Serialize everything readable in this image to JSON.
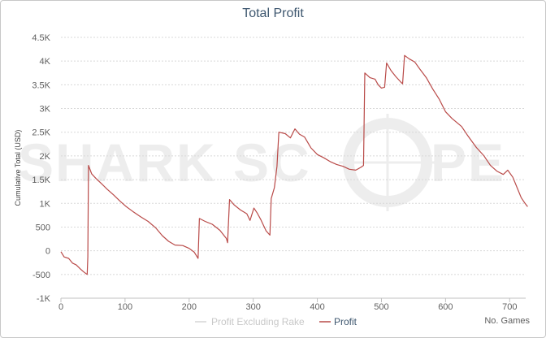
{
  "colors": {
    "profit": "#b94a48",
    "profit_excl_rake": "#d6d6d6",
    "grid": "#d8d8d8",
    "title": "#3e576f"
  },
  "watermark": {
    "left": "SHARK SC",
    "right": "PE"
  },
  "chart_data": {
    "type": "line",
    "title": "Total Profit",
    "ylabel": "Cumulative Total (USD)",
    "xlabel": "No. Games",
    "xlim": [
      0,
      725
    ],
    "ylim": [
      -1000,
      4500
    ],
    "x_ticks": [
      "0",
      "100",
      "200",
      "300",
      "400",
      "500",
      "600",
      "700"
    ],
    "y_ticks": [
      "-1K",
      "-500",
      "0",
      "500",
      "1K",
      "1.5K",
      "2K",
      "2.5K",
      "3K",
      "3.5K",
      "4K",
      "4.5K"
    ],
    "grid": true,
    "legend_position": "bottom",
    "series": [
      {
        "name": "Profit Excluding Rake",
        "visible": false,
        "points": []
      },
      {
        "name": "Profit",
        "visible": true,
        "points": [
          [
            0,
            -20
          ],
          [
            5,
            -130
          ],
          [
            12,
            -160
          ],
          [
            18,
            -260
          ],
          [
            24,
            -300
          ],
          [
            30,
            -380
          ],
          [
            35,
            -440
          ],
          [
            39,
            -480
          ],
          [
            41,
            -500
          ],
          [
            42,
            -130
          ],
          [
            43,
            1800
          ],
          [
            48,
            1620
          ],
          [
            55,
            1520
          ],
          [
            63,
            1420
          ],
          [
            72,
            1300
          ],
          [
            82,
            1180
          ],
          [
            92,
            1050
          ],
          [
            102,
            930
          ],
          [
            112,
            830
          ],
          [
            124,
            720
          ],
          [
            136,
            620
          ],
          [
            148,
            480
          ],
          [
            158,
            320
          ],
          [
            168,
            200
          ],
          [
            178,
            120
          ],
          [
            190,
            110
          ],
          [
            200,
            50
          ],
          [
            208,
            -30
          ],
          [
            214,
            -160
          ],
          [
            216,
            680
          ],
          [
            225,
            620
          ],
          [
            236,
            560
          ],
          [
            248,
            430
          ],
          [
            258,
            260
          ],
          [
            260,
            170
          ],
          [
            263,
            1080
          ],
          [
            270,
            970
          ],
          [
            280,
            860
          ],
          [
            290,
            780
          ],
          [
            295,
            640
          ],
          [
            301,
            900
          ],
          [
            306,
            800
          ],
          [
            312,
            650
          ],
          [
            320,
            420
          ],
          [
            326,
            330
          ],
          [
            328,
            1100
          ],
          [
            333,
            1330
          ],
          [
            337,
            1780
          ],
          [
            340,
            2500
          ],
          [
            350,
            2470
          ],
          [
            358,
            2380
          ],
          [
            365,
            2570
          ],
          [
            372,
            2460
          ],
          [
            380,
            2400
          ],
          [
            390,
            2170
          ],
          [
            400,
            2030
          ],
          [
            410,
            1960
          ],
          [
            420,
            1880
          ],
          [
            430,
            1820
          ],
          [
            440,
            1780
          ],
          [
            450,
            1720
          ],
          [
            460,
            1700
          ],
          [
            468,
            1760
          ],
          [
            472,
            1800
          ],
          [
            474,
            3750
          ],
          [
            482,
            3650
          ],
          [
            490,
            3620
          ],
          [
            495,
            3500
          ],
          [
            500,
            3430
          ],
          [
            505,
            3450
          ],
          [
            508,
            3960
          ],
          [
            515,
            3800
          ],
          [
            522,
            3680
          ],
          [
            530,
            3560
          ],
          [
            533,
            3520
          ],
          [
            536,
            4120
          ],
          [
            543,
            4050
          ],
          [
            552,
            3980
          ],
          [
            560,
            3830
          ],
          [
            570,
            3650
          ],
          [
            580,
            3410
          ],
          [
            590,
            3200
          ],
          [
            600,
            2930
          ],
          [
            610,
            2790
          ],
          [
            618,
            2700
          ],
          [
            625,
            2620
          ],
          [
            635,
            2420
          ],
          [
            648,
            2180
          ],
          [
            660,
            2000
          ],
          [
            670,
            1800
          ],
          [
            680,
            1680
          ],
          [
            690,
            1610
          ],
          [
            697,
            1700
          ],
          [
            705,
            1550
          ],
          [
            712,
            1320
          ],
          [
            718,
            1120
          ],
          [
            724,
            1000
          ],
          [
            728,
            930
          ]
        ]
      }
    ]
  }
}
